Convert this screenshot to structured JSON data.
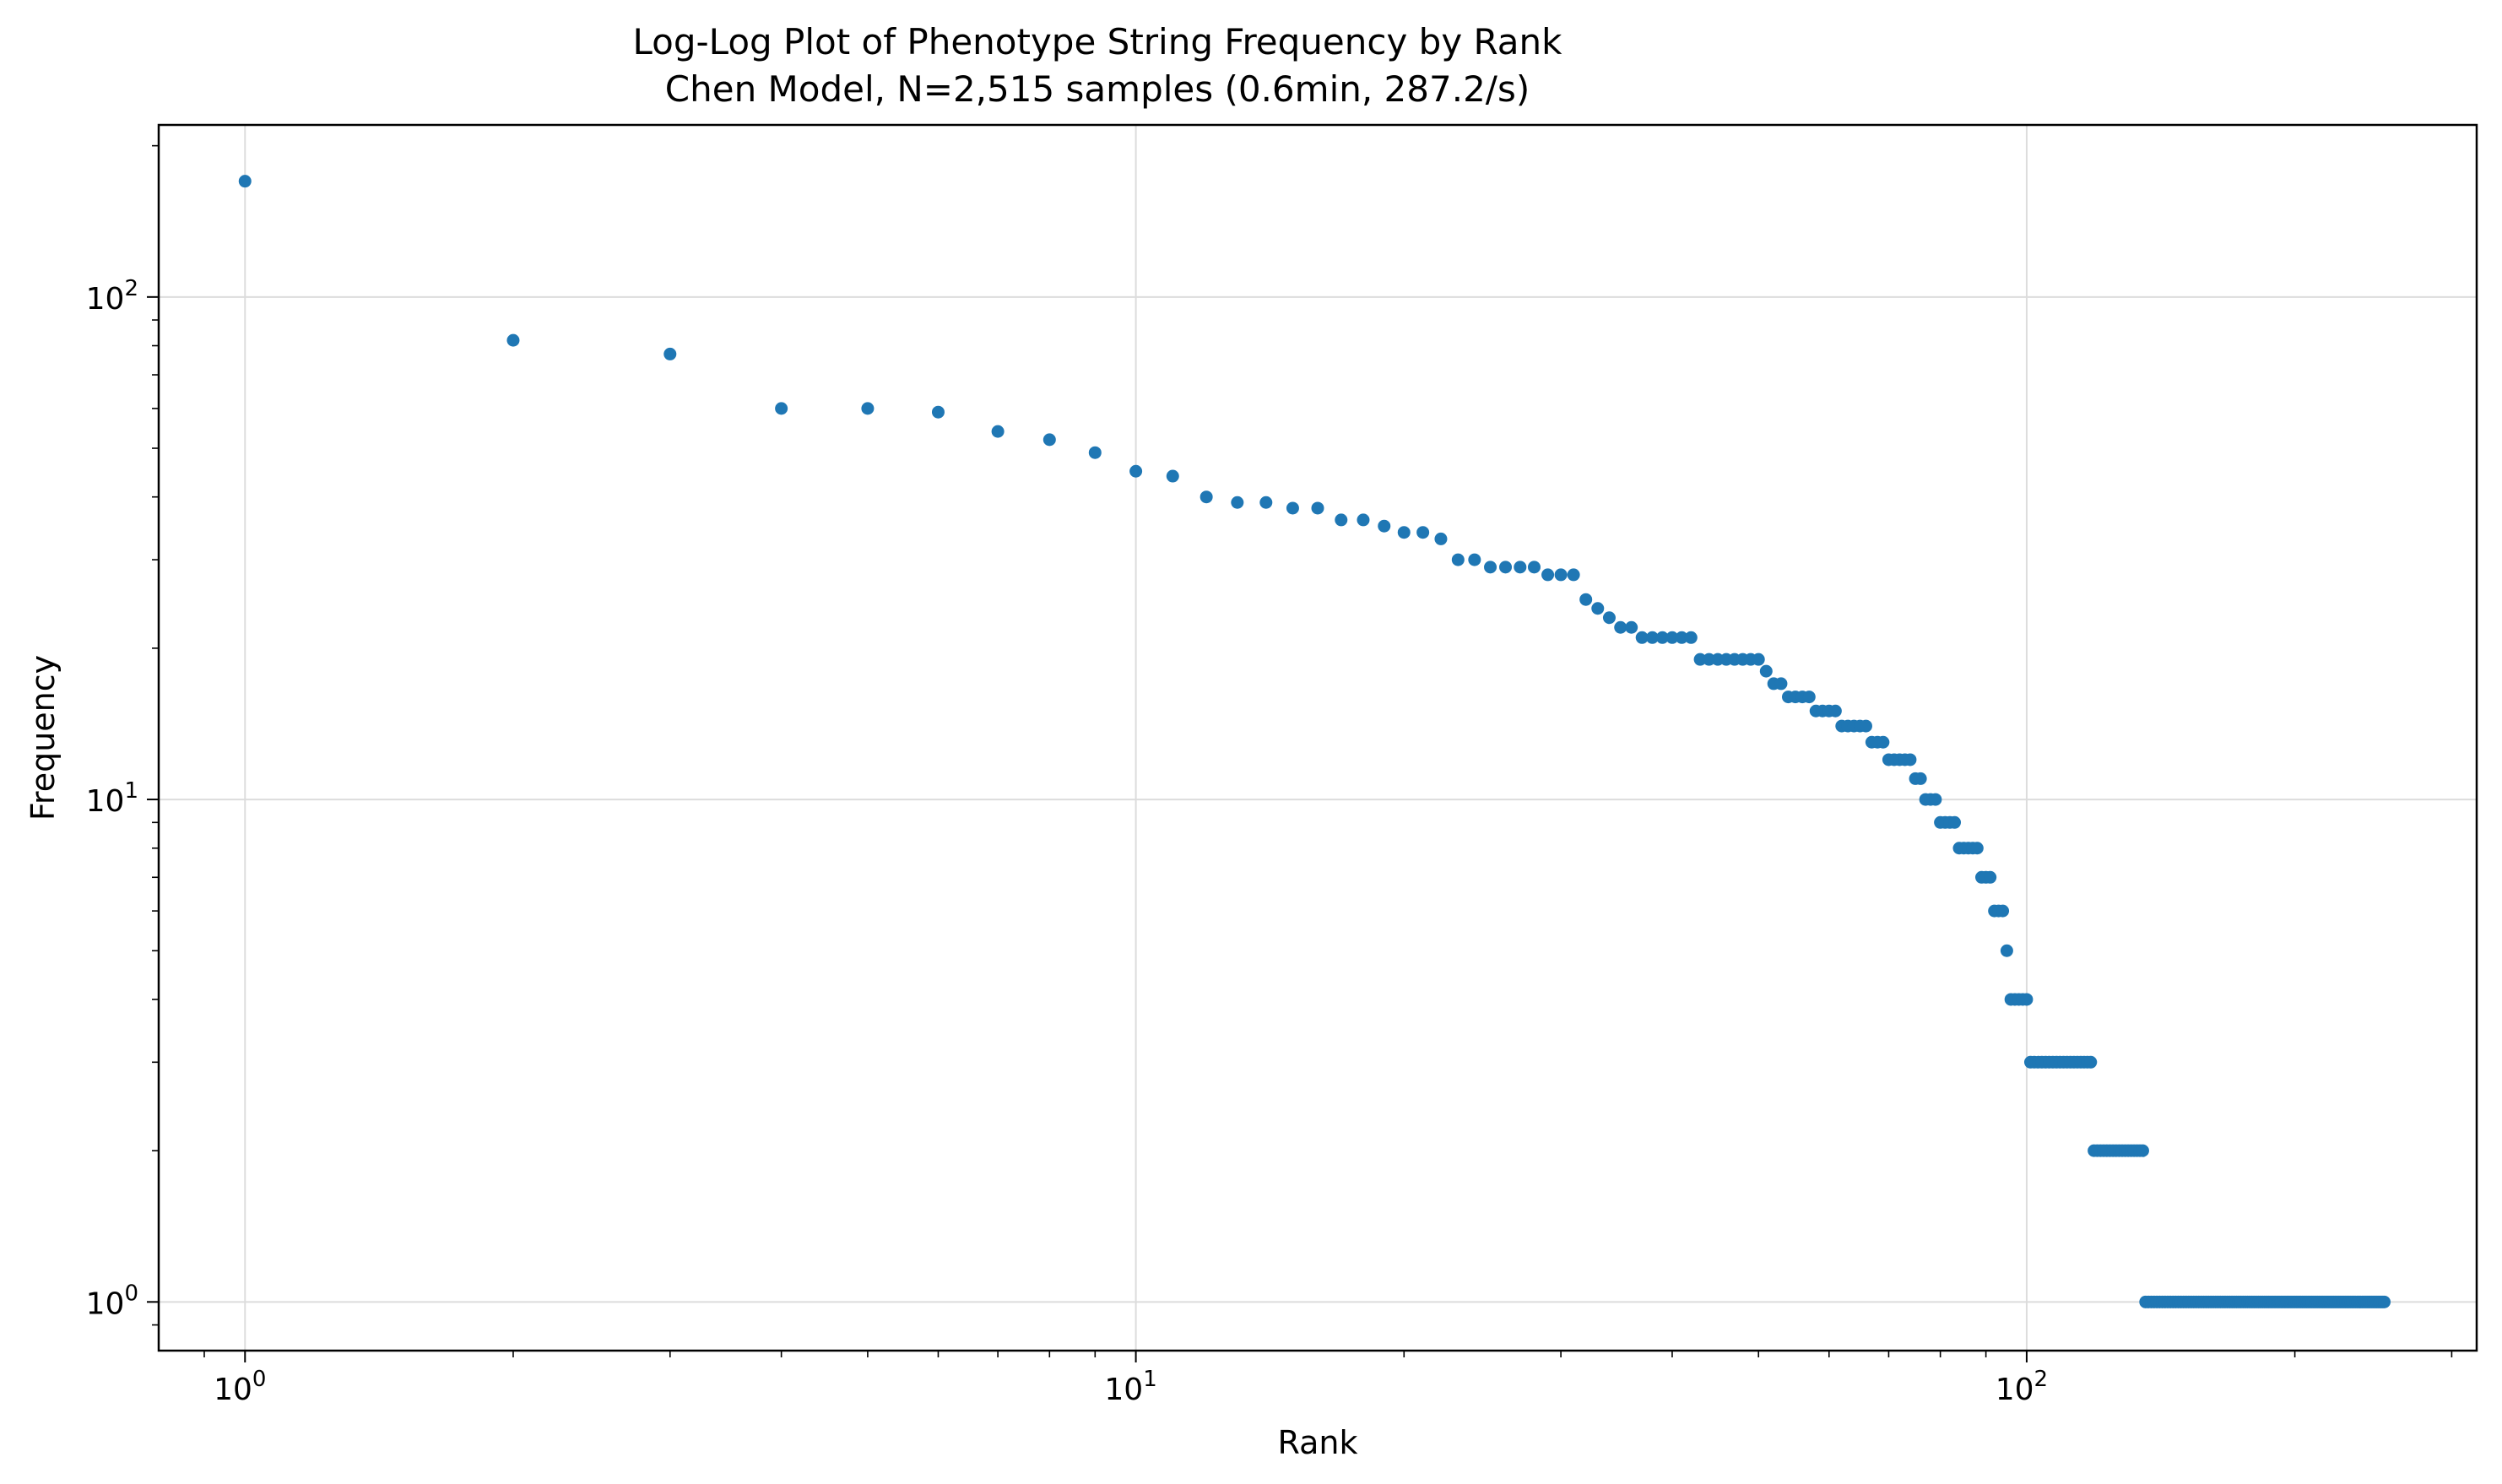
{
  "chart_data": {
    "type": "scatter",
    "title": "Log-Log Plot of Phenotype String Frequency by Rank",
    "subtitle": "Chen Model, N=2,515 samples (0.6min, 287.2/s)",
    "xlabel": "Rank",
    "ylabel": "Frequency",
    "xscale": "log",
    "yscale": "log",
    "xlim": [
      0.8,
      320
    ],
    "ylim": [
      0.8,
      220
    ],
    "grid": true,
    "legend": "none",
    "marker_color": "#1f77b4",
    "x_ticks": [
      {
        "base": "10",
        "exp": "0",
        "value": 1
      },
      {
        "base": "10",
        "exp": "1",
        "value": 10
      },
      {
        "base": "10",
        "exp": "2",
        "value": 100
      }
    ],
    "y_ticks": [
      {
        "base": "10",
        "exp": "0",
        "value": 1
      },
      {
        "base": "10",
        "exp": "1",
        "value": 10
      },
      {
        "base": "10",
        "exp": "2",
        "value": 100
      }
    ],
    "frequencies_by_rank": [
      170,
      82,
      77,
      60,
      60,
      59,
      54,
      52,
      49,
      45,
      44,
      40,
      39,
      39,
      38,
      38,
      36,
      36,
      35,
      34,
      34,
      33,
      30,
      30,
      29,
      29,
      29,
      29,
      28,
      28,
      28,
      25,
      24,
      23,
      22,
      22,
      21,
      21,
      21,
      21,
      21,
      21,
      19,
      19,
      19,
      19,
      19,
      19,
      19,
      19,
      18,
      17,
      17,
      16,
      16,
      16,
      16,
      15,
      15,
      15,
      15,
      14,
      14,
      14,
      14,
      14,
      13,
      13,
      13,
      12,
      12,
      12,
      12,
      12,
      11,
      11,
      10,
      10,
      10,
      9,
      9,
      9,
      9,
      8,
      8,
      8,
      8,
      8,
      7,
      7,
      7,
      6,
      6,
      6,
      5,
      4,
      4,
      4,
      4,
      4,
      3,
      3,
      3,
      3,
      3,
      3,
      3,
      3,
      3,
      3,
      3,
      3,
      3,
      3,
      3,
      3,
      3,
      3,
      2,
      2,
      2,
      2,
      2,
      2,
      2,
      2,
      2,
      2,
      2,
      2,
      2,
      2,
      2,
      2,
      2,
      1,
      1,
      1,
      1,
      1,
      1,
      1,
      1,
      1,
      1,
      1,
      1,
      1,
      1,
      1,
      1,
      1,
      1,
      1,
      1,
      1,
      1,
      1,
      1,
      1,
      1,
      1,
      1,
      1,
      1,
      1,
      1,
      1,
      1,
      1,
      1,
      1,
      1,
      1,
      1,
      1,
      1,
      1,
      1,
      1,
      1,
      1,
      1,
      1,
      1,
      1,
      1,
      1,
      1,
      1,
      1,
      1,
      1,
      1,
      1,
      1,
      1,
      1,
      1,
      1,
      1,
      1,
      1,
      1,
      1,
      1,
      1,
      1,
      1,
      1,
      1,
      1,
      1,
      1,
      1,
      1,
      1,
      1,
      1,
      1,
      1,
      1,
      1,
      1,
      1,
      1,
      1,
      1,
      1,
      1,
      1,
      1,
      1,
      1,
      1,
      1,
      1,
      1,
      1,
      1,
      1,
      1,
      1,
      1,
      1,
      1,
      1,
      1,
      1,
      1,
      1,
      1
    ]
  }
}
